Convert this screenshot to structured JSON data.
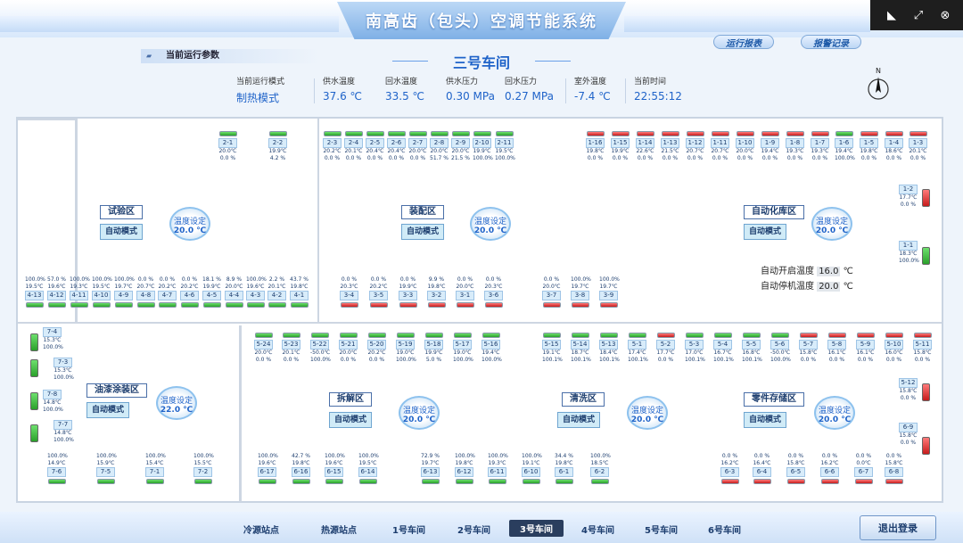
{
  "app": {
    "title": "南高齿（包头）空调节能系统"
  },
  "header": {
    "report_btn": "运行报表",
    "alarm_btn": "报警记录",
    "section_label": "当前运行参数",
    "workshop": "三号车间"
  },
  "params": [
    {
      "label": "当前运行模式",
      "value": "制热模式"
    },
    {
      "label": "供水温度",
      "value": "37.6  ℃"
    },
    {
      "label": "回水温度",
      "value": "33.5  ℃"
    },
    {
      "label": "供水压力",
      "value": "0.30  MPa"
    },
    {
      "label": "回水压力",
      "value": "0.27  MPa"
    },
    {
      "label": "室外温度",
      "value": "-7.4  ℃"
    },
    {
      "label": "当前时间",
      "value": "22:55:12"
    }
  ],
  "compass": "N",
  "colors": {
    "on": "#2aa02a",
    "off": "#c61c1c",
    "accent": "#1f63c9"
  },
  "zones": [
    {
      "name": "试验区",
      "mode": "自动模式",
      "set_label": "温度设定",
      "set_value": "20.0 ℃"
    },
    {
      "name": "装配区",
      "mode": "自动模式",
      "set_label": "温度设定",
      "set_value": "20.0 ℃"
    },
    {
      "name": "自动化库区",
      "mode": "自动模式",
      "set_label": "温度设定",
      "set_value": "20.0 ℃"
    },
    {
      "name": "油漆涂装区",
      "mode": "自动模式",
      "set_label": "温度设定",
      "set_value": "22.0 ℃"
    },
    {
      "name": "拆解区",
      "mode": "自动模式",
      "set_label": "温度设定",
      "set_value": "20.0 ℃"
    },
    {
      "name": "清洗区",
      "mode": "自动模式",
      "set_label": "温度设定",
      "set_value": "20.0 ℃"
    },
    {
      "name": "零件存储区",
      "mode": "自动模式",
      "set_label": "温度设定",
      "set_value": "20.0 ℃"
    }
  ],
  "auto_temp": {
    "start_label": "自动开启温度",
    "start_value": "16.0",
    "stop_label": "自动停机温度",
    "stop_value": "20.0",
    "unit": "℃"
  },
  "units_top": [
    {
      "id": "2-1",
      "t": "20.0℃",
      "p": "0.0 %",
      "s": "on"
    },
    {
      "id": "2-2",
      "t": "19.9℃",
      "p": "4.2 %",
      "s": "on"
    },
    {
      "id": "2-3",
      "t": "20.2℃",
      "p": "0.0 %",
      "s": "on"
    },
    {
      "id": "2-4",
      "t": "20.1℃",
      "p": "0.0 %",
      "s": "on"
    },
    {
      "id": "2-5",
      "t": "20.4℃",
      "p": "0.0 %",
      "s": "on"
    },
    {
      "id": "2-6",
      "t": "20.4℃",
      "p": "0.0 %",
      "s": "on"
    },
    {
      "id": "2-7",
      "t": "20.0℃",
      "p": "0.0 %",
      "s": "on"
    },
    {
      "id": "2-8",
      "t": "20.0℃",
      "p": "51.7 %",
      "s": "on"
    },
    {
      "id": "2-9",
      "t": "20.0℃",
      "p": "21.5 %",
      "s": "on"
    },
    {
      "id": "2-10",
      "t": "19.9℃",
      "p": "100.0%",
      "s": "on"
    },
    {
      "id": "2-11",
      "t": "19.5℃",
      "p": "100.0%",
      "s": "on"
    },
    {
      "id": "1-16",
      "t": "19.8℃",
      "p": "0.0 %",
      "s": "off"
    },
    {
      "id": "1-15",
      "t": "19.9℃",
      "p": "0.0 %",
      "s": "off"
    },
    {
      "id": "1-14",
      "t": "22.6℃",
      "p": "0.0 %",
      "s": "off"
    },
    {
      "id": "1-13",
      "t": "21.5℃",
      "p": "0.0 %",
      "s": "off"
    },
    {
      "id": "1-12",
      "t": "20.7℃",
      "p": "0.0 %",
      "s": "off"
    },
    {
      "id": "1-11",
      "t": "20.7℃",
      "p": "0.0 %",
      "s": "off"
    },
    {
      "id": "1-10",
      "t": "20.0℃",
      "p": "0.0 %",
      "s": "off"
    },
    {
      "id": "1-9",
      "t": "19.4℃",
      "p": "0.0 %",
      "s": "off"
    },
    {
      "id": "1-8",
      "t": "19.3℃",
      "p": "0.0 %",
      "s": "off"
    },
    {
      "id": "1-7",
      "t": "19.3℃",
      "p": "0.0 %",
      "s": "off"
    },
    {
      "id": "1-6",
      "t": "19.4℃",
      "p": "100.0%",
      "s": "on"
    },
    {
      "id": "1-5",
      "t": "19.8℃",
      "p": "0.0 %",
      "s": "off"
    },
    {
      "id": "1-4",
      "t": "18.6℃",
      "p": "0.0 %",
      "s": "off"
    },
    {
      "id": "1-3",
      "t": "20.1℃",
      "p": "0.0 %",
      "s": "off"
    }
  ],
  "units_mid_up": [
    {
      "id": "4-13",
      "t": "19.5℃",
      "p": "100.0%",
      "s": "on"
    },
    {
      "id": "4-12",
      "t": "19.6℃",
      "p": "57.0 %",
      "s": "on"
    },
    {
      "id": "4-11",
      "t": "19.3℃",
      "p": "100.0%",
      "s": "on"
    },
    {
      "id": "4-10",
      "t": "19.5℃",
      "p": "100.0%",
      "s": "on"
    },
    {
      "id": "4-9",
      "t": "19.7℃",
      "p": "100.0%",
      "s": "on"
    },
    {
      "id": "4-8",
      "t": "20.7℃",
      "p": "0.0 %",
      "s": "on"
    },
    {
      "id": "4-7",
      "t": "20.2℃",
      "p": "0.0 %",
      "s": "on"
    },
    {
      "id": "4-6",
      "t": "20.2℃",
      "p": "0.0 %",
      "s": "on"
    },
    {
      "id": "4-5",
      "t": "19.9℃",
      "p": "18.1 %",
      "s": "on"
    },
    {
      "id": "4-4",
      "t": "20.0℃",
      "p": "8.9 %",
      "s": "on"
    },
    {
      "id": "4-3",
      "t": "19.6℃",
      "p": "100.0%",
      "s": "on"
    },
    {
      "id": "4-2",
      "t": "20.1℃",
      "p": "2.2 %",
      "s": "on"
    },
    {
      "id": "4-1",
      "t": "19.8℃",
      "p": "43.7 %",
      "s": "on"
    },
    {
      "id": "3-4",
      "t": "20.3℃",
      "p": "0.0 %",
      "s": "off"
    },
    {
      "id": "3-5",
      "t": "20.2℃",
      "p": "0.0 %",
      "s": "off"
    },
    {
      "id": "3-3",
      "t": "19.9℃",
      "p": "0.0 %",
      "s": "off"
    },
    {
      "id": "3-2",
      "t": "19.8℃",
      "p": "9.9 %",
      "s": "off"
    },
    {
      "id": "3-1",
      "t": "20.0℃",
      "p": "0.0 %",
      "s": "off"
    },
    {
      "id": "3-6",
      "t": "20.3℃",
      "p": "0.0 %",
      "s": "off"
    },
    {
      "id": "3-7",
      "t": "20.0℃",
      "p": "0.0 %",
      "s": "off"
    },
    {
      "id": "3-8",
      "t": "19.7℃",
      "p": "100.0%",
      "s": "off"
    },
    {
      "id": "3-9",
      "t": "19.7℃",
      "p": "100.0%",
      "s": "off"
    }
  ],
  "units_mid_down": [
    {
      "id": "5-24",
      "t": "20.0℃",
      "p": "0.0 %",
      "s": "on"
    },
    {
      "id": "5-23",
      "t": "20.1℃",
      "p": "0.0 %",
      "s": "on"
    },
    {
      "id": "5-22",
      "t": "-50.0℃",
      "p": "100.0%",
      "s": "on"
    },
    {
      "id": "5-21",
      "t": "20.0℃",
      "p": "0.0 %",
      "s": "on"
    },
    {
      "id": "5-20",
      "t": "20.2℃",
      "p": "0.0 %",
      "s": "on"
    },
    {
      "id": "5-19",
      "t": "19.0℃",
      "p": "100.0%",
      "s": "on"
    },
    {
      "id": "5-18",
      "t": "19.9℃",
      "p": "5.0 %",
      "s": "on"
    },
    {
      "id": "5-17",
      "t": "19.0℃",
      "p": "100.0%",
      "s": "on"
    },
    {
      "id": "5-16",
      "t": "19.4℃",
      "p": "100.0%",
      "s": "on"
    },
    {
      "id": "5-15",
      "t": "19.1℃",
      "p": "100.1%",
      "s": "on"
    },
    {
      "id": "5-14",
      "t": "18.7℃",
      "p": "100.1%",
      "s": "on"
    },
    {
      "id": "5-13",
      "t": "18.4℃",
      "p": "100.1%",
      "s": "on"
    },
    {
      "id": "5-1",
      "t": "17.4℃",
      "p": "100.1%",
      "s": "on"
    },
    {
      "id": "5-2",
      "t": "17.7℃",
      "p": "0.0 %",
      "s": "off"
    },
    {
      "id": "5-3",
      "t": "17.0℃",
      "p": "100.1%",
      "s": "on"
    },
    {
      "id": "5-4",
      "t": "16.7℃",
      "p": "100.1%",
      "s": "on"
    },
    {
      "id": "5-5",
      "t": "16.8℃",
      "p": "100.1%",
      "s": "on"
    },
    {
      "id": "5-6",
      "t": "-50.0℃",
      "p": "100.0%",
      "s": "on"
    },
    {
      "id": "5-7",
      "t": "15.8℃",
      "p": "0.0 %",
      "s": "off"
    },
    {
      "id": "5-8",
      "t": "16.1℃",
      "p": "0.0 %",
      "s": "off"
    },
    {
      "id": "5-9",
      "t": "16.1℃",
      "p": "0.0 %",
      "s": "off"
    },
    {
      "id": "5-10",
      "t": "16.0℃",
      "p": "0.0 %",
      "s": "off"
    },
    {
      "id": "5-11",
      "t": "15.8℃",
      "p": "0.0 %",
      "s": "off"
    }
  ],
  "units_bottom": [
    {
      "id": "7-6",
      "t": "14.9℃",
      "p": "100.0%",
      "s": "on"
    },
    {
      "id": "7-5",
      "t": "15.9℃",
      "p": "100.0%",
      "s": "on"
    },
    {
      "id": "7-1",
      "t": "15.4℃",
      "p": "100.0%",
      "s": "on"
    },
    {
      "id": "7-2",
      "t": "15.5℃",
      "p": "100.0%",
      "s": "on"
    },
    {
      "id": "6-17",
      "t": "19.6℃",
      "p": "100.0%",
      "s": "on"
    },
    {
      "id": "6-16",
      "t": "19.8℃",
      "p": "42.7 %",
      "s": "on"
    },
    {
      "id": "6-15",
      "t": "19.6℃",
      "p": "100.0%",
      "s": "on"
    },
    {
      "id": "6-14",
      "t": "19.5℃",
      "p": "100.0%",
      "s": "on"
    },
    {
      "id": "6-13",
      "t": "19.7℃",
      "p": "72.9 %",
      "s": "on"
    },
    {
      "id": "6-12",
      "t": "19.8℃",
      "p": "100.0%",
      "s": "on"
    },
    {
      "id": "6-11",
      "t": "19.3℃",
      "p": "100.0%",
      "s": "on"
    },
    {
      "id": "6-10",
      "t": "19.1℃",
      "p": "100.0%",
      "s": "on"
    },
    {
      "id": "6-1",
      "t": "19.8℃",
      "p": "34.4 %",
      "s": "on"
    },
    {
      "id": "6-2",
      "t": "18.5℃",
      "p": "100.0%",
      "s": "on"
    },
    {
      "id": "6-3",
      "t": "16.2℃",
      "p": "0.0 %",
      "s": "off"
    },
    {
      "id": "6-4",
      "t": "16.4℃",
      "p": "0.0 %",
      "s": "off"
    },
    {
      "id": "6-5",
      "t": "15.8℃",
      "p": "0.0 %",
      "s": "off"
    },
    {
      "id": "6-6",
      "t": "16.2℃",
      "p": "0.0 %",
      "s": "off"
    },
    {
      "id": "6-7",
      "t": "0.0℃",
      "p": "0.0 %",
      "s": "off"
    },
    {
      "id": "6-8",
      "t": "15.8℃",
      "p": "0.0 %",
      "s": "off"
    }
  ],
  "units_side": [
    {
      "id": "1-2",
      "t": "17.7℃",
      "p": "0.0 %",
      "s": "off"
    },
    {
      "id": "1-1",
      "t": "18.3℃",
      "p": "100.0%",
      "s": "on"
    },
    {
      "id": "5-12",
      "t": "15.8℃",
      "p": "0.0 %",
      "s": "off"
    },
    {
      "id": "6-9",
      "t": "15.8℃",
      "p": "0.0 %",
      "s": "off"
    },
    {
      "id": "7-4",
      "t": "15.3℃",
      "p": "100.0%",
      "s": "on"
    },
    {
      "id": "7-3",
      "t": "15.3℃",
      "p": "100.0%",
      "s": "on"
    },
    {
      "id": "7-8",
      "t": "14.8℃",
      "p": "100.0%",
      "s": "on"
    },
    {
      "id": "7-7",
      "t": "14.8℃",
      "p": "100.0%",
      "s": "on"
    }
  ],
  "nav": [
    {
      "label": "冷源站点",
      "active": false
    },
    {
      "label": "热源站点",
      "active": false
    },
    {
      "label": "1号车间",
      "active": false
    },
    {
      "label": "2号车间",
      "active": false
    },
    {
      "label": "3号车间",
      "active": true
    },
    {
      "label": "4号车间",
      "active": false
    },
    {
      "label": "5号车间",
      "active": false
    },
    {
      "label": "6号车间",
      "active": false
    }
  ],
  "logout": "退出登录"
}
